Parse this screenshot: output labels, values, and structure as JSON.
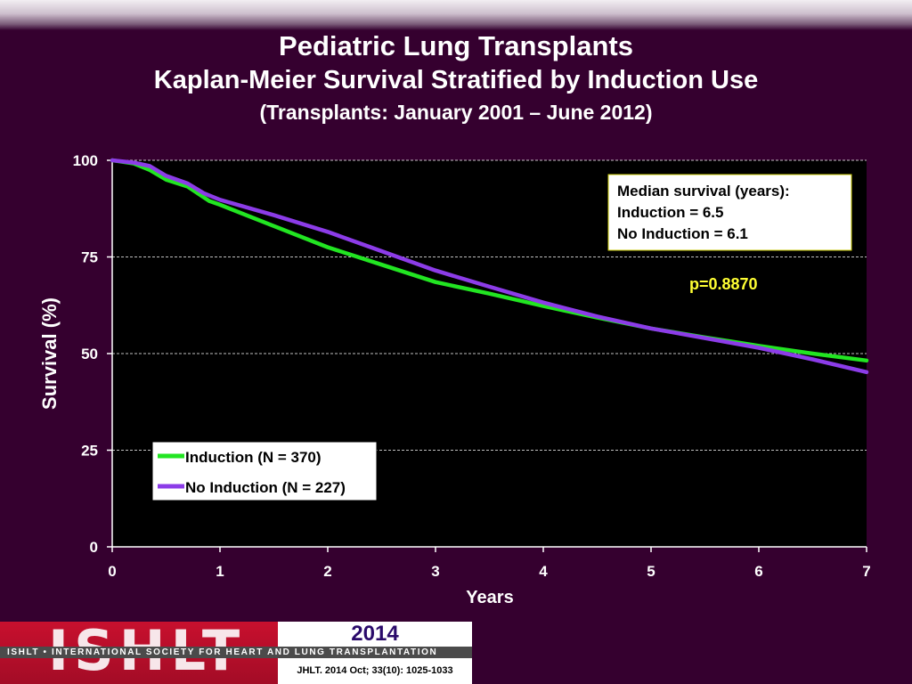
{
  "header": {
    "title": "Pediatric Lung Transplants",
    "subtitle": "Kaplan-Meier Survival Stratified by Induction Use",
    "subtitle2": "(Transplants: January 2001 – June 2012)"
  },
  "colors": {
    "background": "#35002f",
    "induction": "#22e522",
    "no_induction": "#8c3ce8",
    "pvalue": "#ffff33"
  },
  "chart_data": {
    "type": "line",
    "xlabel": "Years",
    "ylabel": "Survival (%)",
    "xlim": [
      0,
      7
    ],
    "ylim": [
      0,
      100
    ],
    "xticks": [
      0,
      1,
      2,
      3,
      4,
      5,
      6,
      7
    ],
    "yticks": [
      0,
      25,
      50,
      75,
      100
    ],
    "grid": "horizontal dashed",
    "series": [
      {
        "name": "Induction (N = 370)",
        "color": "#22e522",
        "x": [
          0,
          0.2,
          0.35,
          0.5,
          0.7,
          0.9,
          1.0,
          1.5,
          2.0,
          2.5,
          3.0,
          3.5,
          4.0,
          4.5,
          5.0,
          5.5,
          6.0,
          6.5,
          7.0
        ],
        "y": [
          100,
          99.2,
          97.5,
          95.0,
          93.2,
          89.5,
          88.5,
          83.0,
          77.5,
          73.0,
          68.5,
          65.5,
          62.3,
          59.3,
          56.5,
          54.2,
          52.0,
          50.0,
          48.2
        ]
      },
      {
        "name": "No Induction (N = 227)",
        "color": "#8c3ce8",
        "x": [
          0,
          0.2,
          0.35,
          0.5,
          0.7,
          0.85,
          1.0,
          1.5,
          2.0,
          2.5,
          3.0,
          3.5,
          4.0,
          4.5,
          5.0,
          5.5,
          6.0,
          6.5,
          7.0
        ],
        "y": [
          100,
          99.4,
          98.5,
          96.0,
          94.0,
          91.5,
          89.8,
          85.8,
          81.5,
          76.5,
          71.5,
          67.3,
          63.2,
          59.6,
          56.5,
          54.0,
          51.5,
          48.5,
          45.2
        ]
      }
    ],
    "legend_position": "bottom-left",
    "annotations": {
      "median_title": "Median survival (years):",
      "median_induction": "Induction = 6.5",
      "median_no_induction": "No Induction = 6.1",
      "pvalue": "p=0.8870"
    }
  },
  "footer": {
    "logo": "ISHLT",
    "org_strip": "ISHLT • INTERNATIONAL SOCIETY FOR HEART AND LUNG TRANSPLANTATION",
    "year": "2014",
    "citation": "JHLT. 2014 Oct; 33(10): 1025-1033"
  }
}
